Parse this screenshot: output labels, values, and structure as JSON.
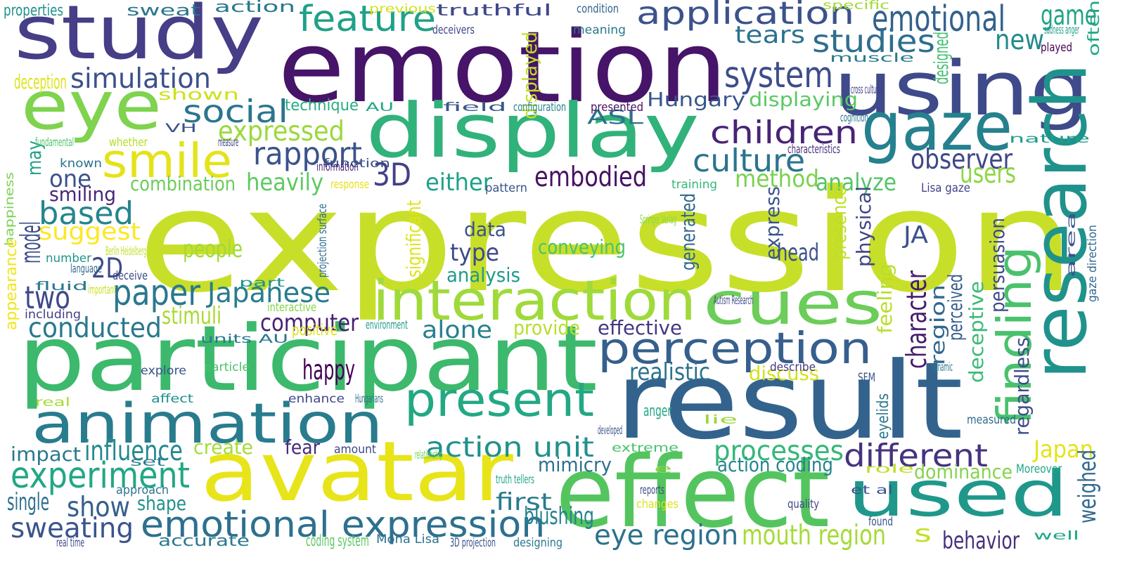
{
  "words": [
    {
      "text": "expression",
      "color": "#c8df2a"
    },
    {
      "text": "emotion",
      "color": "#461468"
    },
    {
      "text": "result",
      "color": "#33638d"
    },
    {
      "text": "participant",
      "color": "#3cb96c"
    },
    {
      "text": "avatar",
      "color": "#e8e41a"
    },
    {
      "text": "effect",
      "color": "#54c55e"
    },
    {
      "text": "study",
      "color": "#463e87"
    },
    {
      "text": "using",
      "color": "#3e4a89"
    },
    {
      "text": "display",
      "color": "#30b27a"
    },
    {
      "text": "used",
      "color": "#1f988b"
    },
    {
      "text": "animation",
      "color": "#287c8e"
    },
    {
      "text": "eye",
      "color": "#7fd34e"
    },
    {
      "text": "interaction",
      "color": "#9fda3a"
    },
    {
      "text": "cues",
      "color": "#6ccd59"
    },
    {
      "text": "research",
      "color": "#20928c"
    },
    {
      "text": "gaze",
      "color": "#26818e"
    },
    {
      "text": "smile",
      "color": "#e4e319"
    },
    {
      "text": "perception",
      "color": "#355f8d"
    },
    {
      "text": "present",
      "color": "#23a884"
    },
    {
      "text": "finding",
      "color": "#4ac16d"
    },
    {
      "text": "emotional expression",
      "color": "#2d708e"
    },
    {
      "text": "application",
      "color": "#3b528b"
    },
    {
      "text": "system",
      "color": "#3d4d8a"
    },
    {
      "text": "feature",
      "color": "#1fa187"
    },
    {
      "text": "emotional",
      "color": "#33628d"
    },
    {
      "text": "game",
      "color": "#20a386"
    },
    {
      "text": "children",
      "color": "#482475"
    },
    {
      "text": "social",
      "color": "#2b758e"
    },
    {
      "text": "simulation",
      "color": "#3b518b"
    },
    {
      "text": "culture",
      "color": "#2b748e"
    },
    {
      "text": "rapport",
      "color": "#3a538b"
    },
    {
      "text": "embodied",
      "color": "#471164"
    },
    {
      "text": "observer",
      "color": "#3f4788"
    },
    {
      "text": "users",
      "color": "#8ed645"
    },
    {
      "text": "new",
      "color": "#238a8d"
    },
    {
      "text": "studies",
      "color": "#2e6e8e"
    },
    {
      "text": "tears",
      "color": "#2c718e"
    },
    {
      "text": "expressed",
      "color": "#9bd93c"
    },
    {
      "text": "based",
      "color": "#25858e"
    },
    {
      "text": "model",
      "color": "#3d4e8a"
    },
    {
      "text": "may",
      "color": "#1f9e89"
    },
    {
      "text": "suggest",
      "color": "#fde725"
    },
    {
      "text": "paper",
      "color": "#2a788e"
    },
    {
      "text": "Japanese",
      "color": "#287d8e"
    },
    {
      "text": "two",
      "color": "#3e4989"
    },
    {
      "text": "conducted",
      "color": "#29798e"
    },
    {
      "text": "experiment",
      "color": "#22a785"
    },
    {
      "text": "influence",
      "color": "#23898e"
    },
    {
      "text": "impact",
      "color": "#2a788e"
    },
    {
      "text": "show",
      "color": "#355f8d"
    },
    {
      "text": "sweating",
      "color": "#3a548c"
    },
    {
      "text": "different",
      "color": "#46327e"
    },
    {
      "text": "processes",
      "color": "#35b779"
    },
    {
      "text": "action unit",
      "color": "#21918c"
    },
    {
      "text": "alone",
      "color": "#27808e"
    },
    {
      "text": "character",
      "color": "#481b6d"
    },
    {
      "text": "Japan",
      "color": "#e5e419"
    },
    {
      "text": "mouth region",
      "color": "#a5db36"
    },
    {
      "text": "eye region",
      "color": "#2c718e"
    },
    {
      "text": "behavior",
      "color": "#472f7d"
    },
    {
      "text": "s",
      "color": "#c2df23"
    },
    {
      "text": "weighed",
      "color": "#31688e"
    },
    {
      "text": "3D",
      "color": "#424086"
    },
    {
      "text": "either",
      "color": "#1fa188"
    },
    {
      "text": "heavily",
      "color": "#5ec962"
    },
    {
      "text": "one",
      "color": "#3b528b"
    },
    {
      "text": "smiling",
      "color": "#482677"
    },
    {
      "text": "combination",
      "color": "#6ccd5a"
    },
    {
      "text": "method",
      "color": "#7ad151"
    },
    {
      "text": "analyze",
      "color": "#54c568"
    },
    {
      "text": "data",
      "color": "#3b528b"
    },
    {
      "text": "type",
      "color": "#3e4989"
    },
    {
      "text": "conveying",
      "color": "#4cc26c"
    },
    {
      "text": "analysis",
      "color": "#1e9b8a"
    },
    {
      "text": "people",
      "color": "#a2da37"
    },
    {
      "text": "stimuli",
      "color": "#a8db34"
    },
    {
      "text": "computer",
      "color": "#482173"
    },
    {
      "text": "happy",
      "color": "#440154"
    },
    {
      "text": "2D",
      "color": "#3f4889"
    },
    {
      "text": "realistic",
      "color": "#2c738e"
    },
    {
      "text": "discuss",
      "color": "#d5e21a"
    },
    {
      "text": "effective",
      "color": "#453781"
    },
    {
      "text": "provide",
      "color": "#b5de2b"
    },
    {
      "text": "create",
      "color": "#a5db36"
    },
    {
      "text": "fear",
      "color": "#472c7a"
    },
    {
      "text": "shape",
      "color": "#21908d"
    },
    {
      "text": "single",
      "color": "#2e6e8e"
    },
    {
      "text": "first",
      "color": "#297b8e"
    },
    {
      "text": "blushing",
      "color": "#26828e"
    },
    {
      "text": "mimicry",
      "color": "#2d718e"
    },
    {
      "text": "action coding",
      "color": "#25848e"
    },
    {
      "text": "dominance",
      "color": "#84d44b"
    },
    {
      "text": "head",
      "color": "#3b528b"
    },
    {
      "text": "express",
      "color": "#3a548c"
    },
    {
      "text": "generated",
      "color": "#31678e"
    },
    {
      "text": "presence",
      "color": "#bddf26"
    },
    {
      "text": "physical",
      "color": "#3f4788"
    },
    {
      "text": "JA",
      "color": "#3b528b"
    },
    {
      "text": "persuasion",
      "color": "#3e4a89"
    },
    {
      "text": "perceived",
      "color": "#365c8d"
    },
    {
      "text": "deceptive",
      "color": "#3aba76"
    },
    {
      "text": "region",
      "color": "#31678e"
    },
    {
      "text": "feeling",
      "color": "#b8de29"
    },
    {
      "text": "regardless",
      "color": "#3d4d8a"
    },
    {
      "text": "significant",
      "color": "#dde318"
    },
    {
      "text": "displayed",
      "color": "#c0df25"
    },
    {
      "text": "Hungary",
      "color": "#39568c"
    },
    {
      "text": "displaying",
      "color": "#5ac864"
    },
    {
      "text": "designed",
      "color": "#44bf70"
    },
    {
      "text": "ASL",
      "color": "#2d718e"
    },
    {
      "text": "sweat",
      "color": "#2b758e"
    },
    {
      "text": "truthful",
      "color": "#3f4889"
    },
    {
      "text": "properties",
      "color": "#21918c"
    },
    {
      "text": "action",
      "color": "#29798e"
    },
    {
      "text": "deception",
      "color": "#dde318"
    },
    {
      "text": "shown",
      "color": "#cde11d"
    },
    {
      "text": "technique",
      "color": "#26ad81"
    },
    {
      "text": "previous",
      "color": "#d2e21b"
    },
    {
      "text": "condition",
      "color": "#33638d"
    },
    {
      "text": "meaning",
      "color": "#2a788e"
    },
    {
      "text": "deceivers",
      "color": "#3e4989"
    },
    {
      "text": "specific",
      "color": "#a2da37"
    },
    {
      "text": "sadness anger",
      "color": "#1f9a8a"
    },
    {
      "text": "played",
      "color": "#440154"
    },
    {
      "text": "often",
      "color": "#22a785"
    },
    {
      "text": "muscle",
      "color": "#297b8e"
    },
    {
      "text": "cross cultural",
      "color": "#424086"
    },
    {
      "text": "AU",
      "color": "#22a785"
    },
    {
      "text": "field",
      "color": "#39568c"
    },
    {
      "text": "configuration",
      "color": "#26828e"
    },
    {
      "text": "presented",
      "color": "#471063"
    },
    {
      "text": "cognition",
      "color": "#2a768e"
    },
    {
      "text": "nature",
      "color": "#1f9e89"
    },
    {
      "text": "characteristics",
      "color": "#472e7c"
    },
    {
      "text": "fundamental",
      "color": "#4ec36b"
    },
    {
      "text": "whether",
      "color": "#b8de29"
    },
    {
      "text": "measure",
      "color": "#424086"
    },
    {
      "text": "VH",
      "color": "#3b528b"
    },
    {
      "text": "known",
      "color": "#2c738e"
    },
    {
      "text": "function",
      "color": "#3b528b"
    },
    {
      "text": "information",
      "color": "#482374"
    },
    {
      "text": "response",
      "color": "#e5e419"
    },
    {
      "text": "pattern",
      "color": "#39568c"
    },
    {
      "text": "training",
      "color": "#35b779"
    },
    {
      "text": "Lisa gaze",
      "color": "#414487"
    },
    {
      "text": "happiness",
      "color": "#7ad151"
    },
    {
      "text": "projection surface",
      "color": "#2e6e8e"
    },
    {
      "text": "Springer Verlag",
      "color": "#8bd646"
    },
    {
      "text": "area",
      "color": "#3b528b"
    },
    {
      "text": "gaze direction",
      "color": "#31678e"
    },
    {
      "text": "Berlin Heidelberg",
      "color": "#c2df23"
    },
    {
      "text": "number",
      "color": "#1f968b"
    },
    {
      "text": "language",
      "color": "#31688e"
    },
    {
      "text": "deceive",
      "color": "#3e4989"
    },
    {
      "text": "fluid",
      "color": "#2a788e"
    },
    {
      "text": "important",
      "color": "#c8e020"
    },
    {
      "text": "part",
      "color": "#20938c"
    },
    {
      "text": "interactive",
      "color": "#84d44b"
    },
    {
      "text": "including",
      "color": "#433e85"
    },
    {
      "text": "appearance",
      "color": "#f1e51d"
    },
    {
      "text": "environment",
      "color": "#1f9a8a"
    },
    {
      "text": "positive",
      "color": "#dde318"
    },
    {
      "text": "units AU",
      "color": "#2a788e"
    },
    {
      "text": "Autism Research",
      "color": "#3e4989"
    },
    {
      "text": "explore",
      "color": "#3b528b"
    },
    {
      "text": "particle",
      "color": "#4cc26c"
    },
    {
      "text": "describe",
      "color": "#443a83"
    },
    {
      "text": "dynamic",
      "color": "#2a768e"
    },
    {
      "text": "SFM",
      "color": "#3b528b"
    },
    {
      "text": "real",
      "color": "#a8db34"
    },
    {
      "text": "affect",
      "color": "#21918c"
    },
    {
      "text": "enhance",
      "color": "#3f4788"
    },
    {
      "text": "Hungarians",
      "color": "#2c738e"
    },
    {
      "text": "anger",
      "color": "#22a884"
    },
    {
      "text": "lie",
      "color": "#9bd93c"
    },
    {
      "text": "eyelids",
      "color": "#2a788e"
    },
    {
      "text": "measured",
      "color": "#2f6c8e"
    },
    {
      "text": "developed",
      "color": "#3b528b"
    },
    {
      "text": "set",
      "color": "#297b8e"
    },
    {
      "text": "amount",
      "color": "#3e4989"
    },
    {
      "text": "extreme",
      "color": "#4ac16d"
    },
    {
      "text": "relationship",
      "color": "#73d056"
    },
    {
      "text": "e",
      "color": "#8fd744"
    },
    {
      "text": "role",
      "color": "#c0df25"
    },
    {
      "text": "Moreover",
      "color": "#22a785"
    },
    {
      "text": "approach",
      "color": "#2b758e"
    },
    {
      "text": "truth tellers",
      "color": "#20a386"
    },
    {
      "text": "reports",
      "color": "#3e4989"
    },
    {
      "text": "et al",
      "color": "#3b528b"
    },
    {
      "text": "changes",
      "color": "#dde318"
    },
    {
      "text": "quality",
      "color": "#3e4989"
    },
    {
      "text": "found",
      "color": "#39568c"
    },
    {
      "text": "well",
      "color": "#22a785"
    },
    {
      "text": "accurate",
      "color": "#2a788e"
    },
    {
      "text": "coding system",
      "color": "#5ec962"
    },
    {
      "text": "Mona Lisa",
      "color": "#2c718e"
    },
    {
      "text": "3D projection",
      "color": "#3b528b"
    },
    {
      "text": "designing",
      "color": "#2a788e"
    },
    {
      "text": "real time",
      "color": "#3e4989"
    },
    {
      "text": "level",
      "color": "#23a884"
    }
  ]
}
